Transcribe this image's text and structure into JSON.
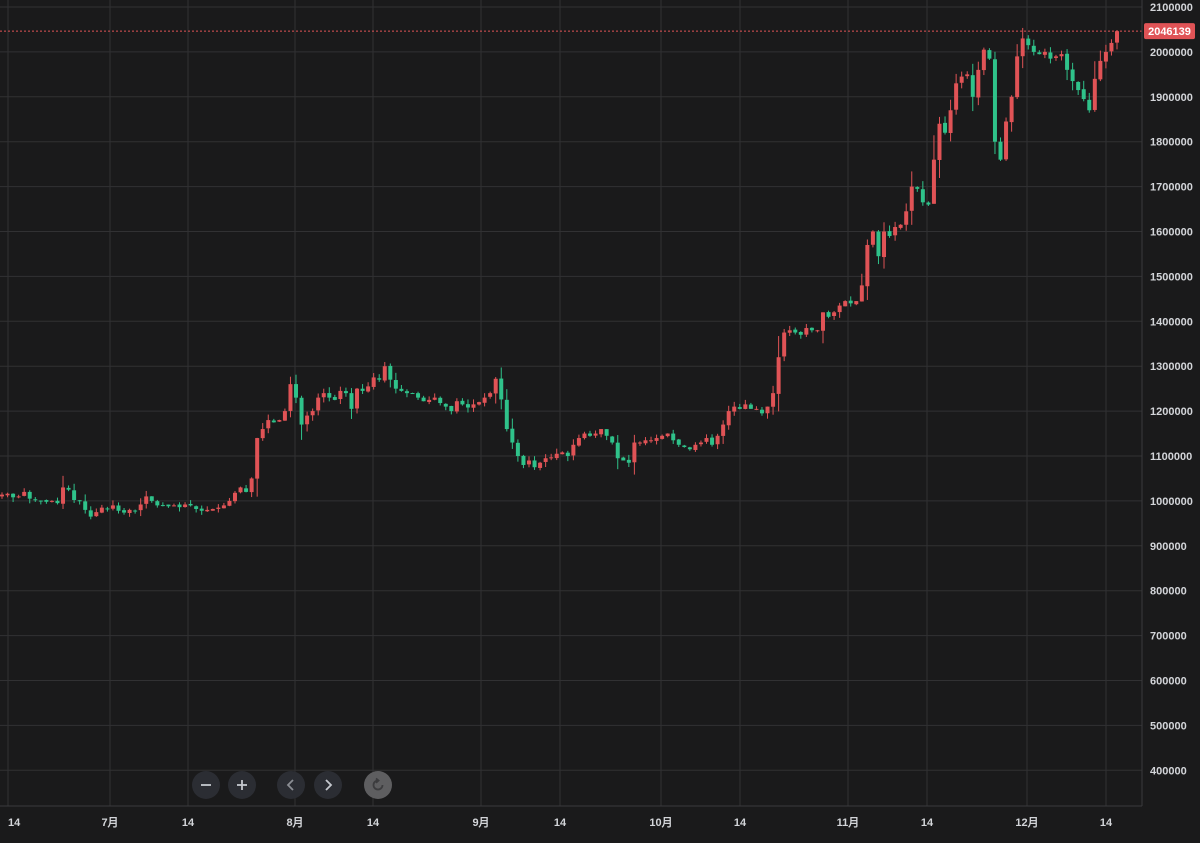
{
  "chart_data": {
    "type": "candlestick",
    "title": "",
    "xlabel": "",
    "ylabel": "",
    "x_tick_labels": [
      "14",
      "7月",
      "14",
      "8月",
      "14",
      "9月",
      "14",
      "10月",
      "14",
      "11月",
      "14",
      "12月",
      "14"
    ],
    "y_tick_labels": [
      "400000",
      "500000",
      "600000",
      "700000",
      "800000",
      "900000",
      "1000000",
      "1100000",
      "1200000",
      "1300000",
      "1400000",
      "1500000",
      "1600000",
      "1700000",
      "1800000",
      "1900000",
      "2000000",
      "2100000"
    ],
    "ylim": [
      310000,
      2115000
    ],
    "last_price": 2046139,
    "last_price_label": "2046139",
    "up_color": "#e05356",
    "down_color": "#2fc28a",
    "grid": true,
    "price_scale_position": "right",
    "close_series": [
      1014000,
      1016000,
      1008000,
      1010000,
      1020000,
      1005000,
      1002000,
      1000000,
      998000,
      1000000,
      995000,
      1030000,
      1025000,
      1002000,
      1000000,
      980000,
      965000,
      975000,
      985000,
      982000,
      990000,
      978000,
      974000,
      980000,
      978000,
      992000,
      1010000,
      1000000,
      990000,
      990000,
      988000,
      990000,
      986000,
      992000,
      990000,
      982000,
      978000,
      980000,
      982000,
      985000,
      990000,
      1000000,
      1018000,
      1030000,
      1020000,
      1050000,
      1140000,
      1160000,
      1180000,
      1175000,
      1180000,
      1200000,
      1260000,
      1230000,
      1170000,
      1190000,
      1200000,
      1230000,
      1240000,
      1230000,
      1225000,
      1245000,
      1240000,
      1205000,
      1250000,
      1245000,
      1255000,
      1275000,
      1270000,
      1300000,
      1270000,
      1250000,
      1245000,
      1240000,
      1240000,
      1230000,
      1222000,
      1225000,
      1230000,
      1218000,
      1210000,
      1200000,
      1222000,
      1215000,
      1208000,
      1215000,
      1220000,
      1230000,
      1240000,
      1272000,
      1226000,
      1160000,
      1130000,
      1100000,
      1080000,
      1090000,
      1075000,
      1085000,
      1095000,
      1097000,
      1105000,
      1108000,
      1100000,
      1125000,
      1140000,
      1150000,
      1145000,
      1150000,
      1160000,
      1145000,
      1130000,
      1095000,
      1090000,
      1085000,
      1130000,
      1130000,
      1135000,
      1135000,
      1140000,
      1145000,
      1150000,
      1135000,
      1125000,
      1120000,
      1115000,
      1125000,
      1130000,
      1140000,
      1125000,
      1145000,
      1170000,
      1200000,
      1210000,
      1205000,
      1215000,
      1205000,
      1205000,
      1195000,
      1210000,
      1240000,
      1320000,
      1375000,
      1380000,
      1375000,
      1370000,
      1385000,
      1380000,
      1380000,
      1420000,
      1410000,
      1420000,
      1435000,
      1445000,
      1440000,
      1445000,
      1480000,
      1570000,
      1600000,
      1545000,
      1600000,
      1590000,
      1610000,
      1615000,
      1645000,
      1700000,
      1695000,
      1665000,
      1660000,
      1760000,
      1840000,
      1820000,
      1870000,
      1930000,
      1945000,
      1950000,
      1900000,
      1960000,
      2005000,
      1985000,
      1800000,
      1760000,
      1845000,
      1900000,
      1990000,
      2030000,
      2015000,
      2000000,
      1995000,
      2000000,
      1985000,
      1990000,
      1995000,
      1960000,
      1935000,
      1915000,
      1895000,
      1870000,
      1940000,
      1980000,
      2000000,
      2020000,
      2046139
    ],
    "note_series": "daily OHLC candles; values approximate from the chart"
  },
  "controls": {
    "zoom_out": "minus-icon",
    "zoom_in": "plus-icon",
    "scroll_left": "chevron-left-icon",
    "scroll_right": "chevron-right-icon",
    "reset": "reset-icon"
  }
}
